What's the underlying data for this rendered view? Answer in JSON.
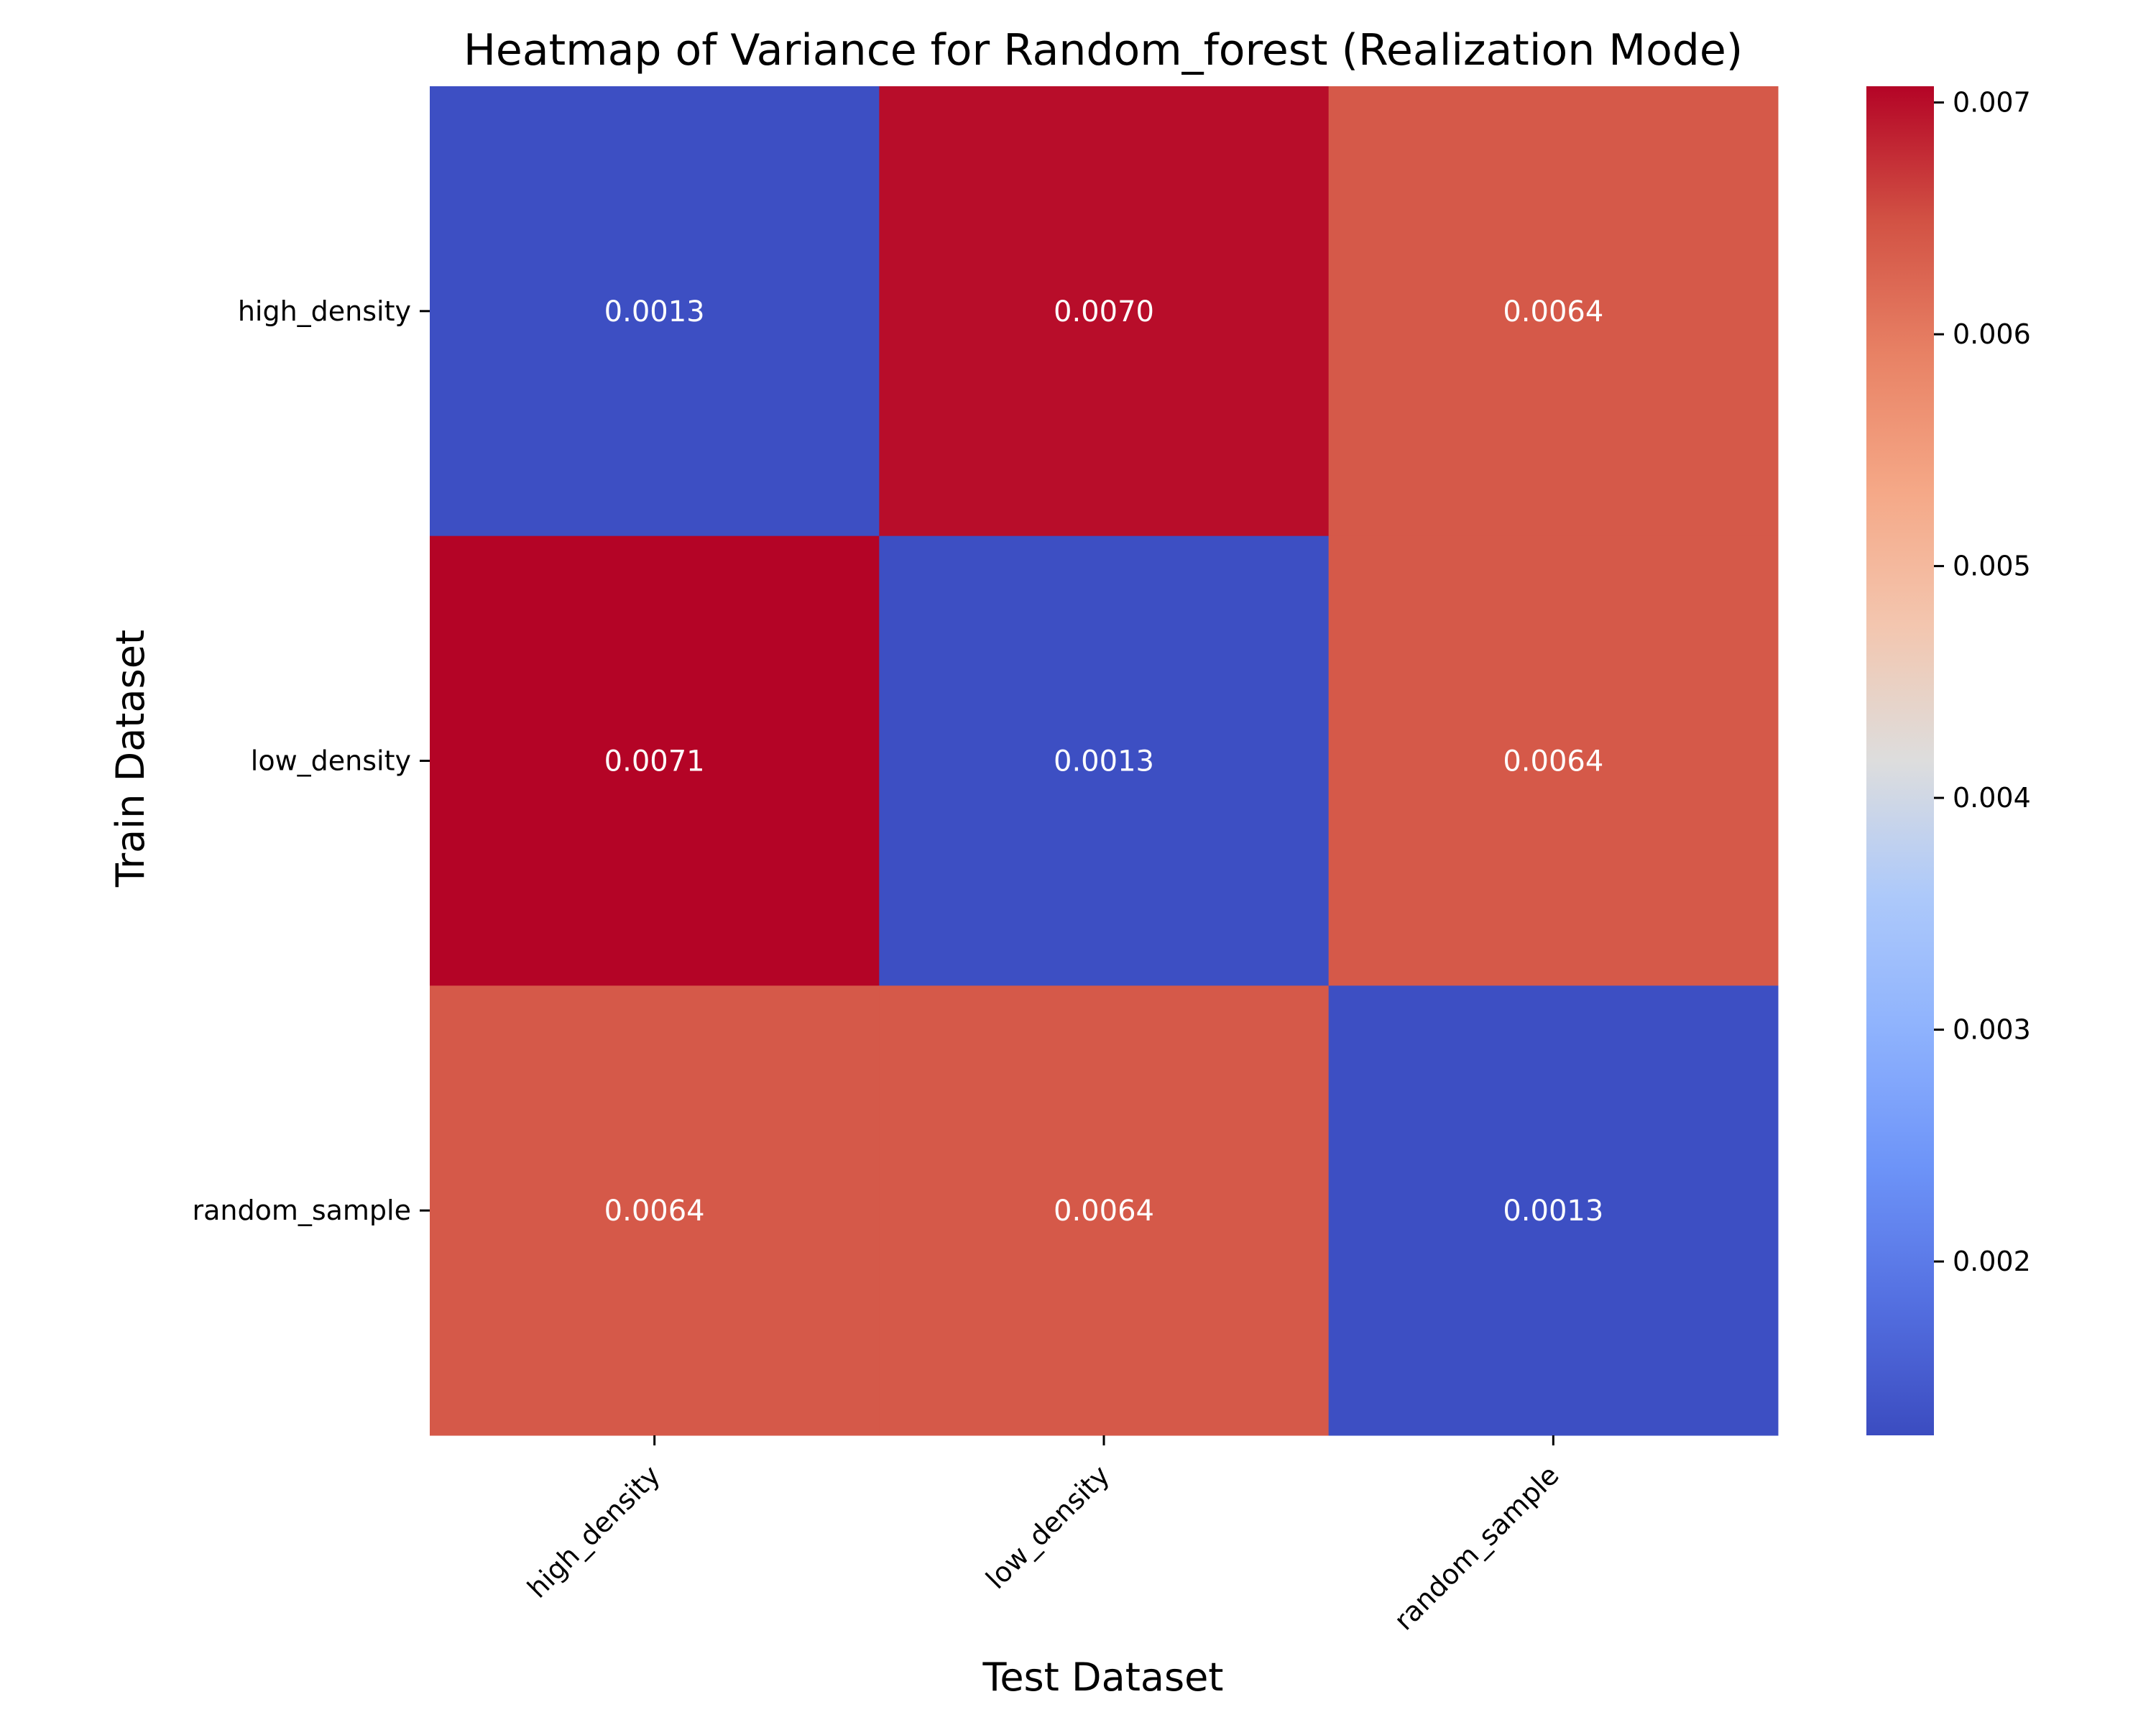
{
  "chart_data": {
    "type": "heatmap",
    "title": "Heatmap of Variance for Random_forest (Realization Mode)",
    "xlabel": "Test Dataset",
    "ylabel": "Train Dataset",
    "x_categories": [
      "high_density",
      "low_density",
      "random_sample"
    ],
    "y_categories": [
      "high_density",
      "low_density",
      "random_sample"
    ],
    "values": [
      [
        0.0013,
        0.007,
        0.0064
      ],
      [
        0.0071,
        0.0013,
        0.0064
      ],
      [
        0.0064,
        0.0064,
        0.0013
      ]
    ],
    "value_labels": [
      [
        "0.0013",
        "0.0070",
        "0.0064"
      ],
      [
        "0.0071",
        "0.0013",
        "0.0064"
      ],
      [
        "0.0064",
        "0.0064",
        "0.0013"
      ]
    ],
    "colormap": "coolwarm",
    "colorbar": {
      "range": [
        0.00125,
        0.00707
      ],
      "ticks": [
        0.002,
        0.003,
        0.004,
        0.005,
        0.006,
        0.007
      ],
      "tick_labels": [
        "0.002",
        "0.003",
        "0.004",
        "0.005",
        "0.006",
        "0.007"
      ]
    }
  }
}
